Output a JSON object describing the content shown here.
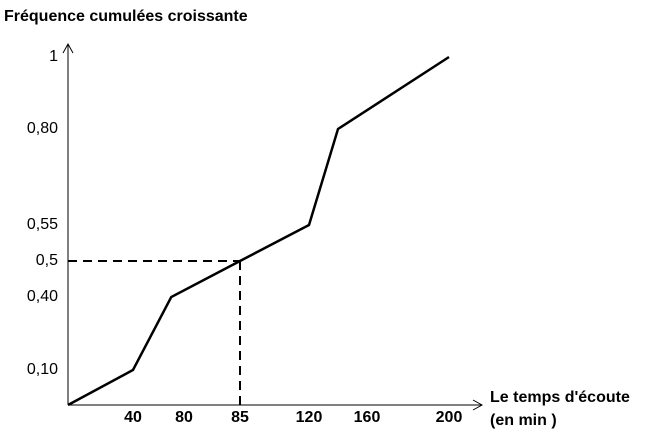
{
  "chart_data": {
    "type": "line",
    "ylabel": "Fréquence cumulées croissante",
    "xlabel": [
      "Le temps d'écoute",
      "(en min )"
    ],
    "x": [
      0,
      40,
      70,
      85,
      120,
      140,
      200
    ],
    "values": [
      0,
      0.1,
      0.4,
      0.5,
      0.55,
      0.8,
      1
    ],
    "color": "#000000",
    "xlim": [
      0,
      200
    ],
    "ylim": [
      0,
      1
    ],
    "xticks": [
      40,
      80,
      85,
      120,
      160,
      200
    ],
    "yticks": [
      {
        "value": 0.1,
        "label": "0,10"
      },
      {
        "value": 0.4,
        "label": "0,40"
      },
      {
        "value": 0.5,
        "label": "0,5"
      },
      {
        "value": 0.55,
        "label": "0,55"
      },
      {
        "value": 0.8,
        "label": "0,80"
      },
      1
    ],
    "guide": {
      "x": 85,
      "y": 0.5
    }
  }
}
